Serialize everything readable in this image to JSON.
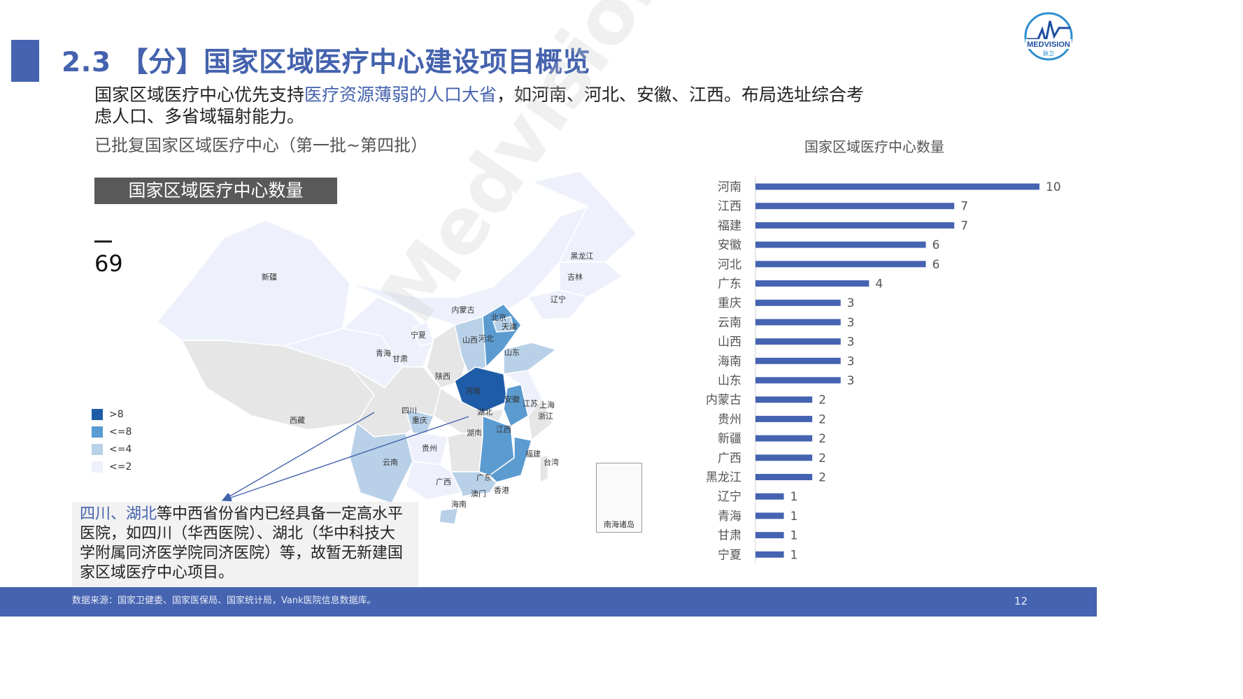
{
  "header": {
    "title": "2.3 【分】国家区域医疗中心建设项目概览",
    "logo_text": "MEDVISION",
    "logo_subtext": "脉卫"
  },
  "intro": {
    "part1": "国家区域医疗中心优先支持",
    "highlight": "医疗资源薄弱的人口大省",
    "part2": "，如河南、河北、安徽、江西。布局选址综合考虑人口、多省域辐射能力。"
  },
  "subheading": "已批复国家区域医疗中心（第一批~第四批）",
  "map": {
    "title": "国家区域医疗中心数量",
    "total": "69",
    "watermark": "Medvision",
    "legend": [
      {
        "label": ">8",
        "color": "#1f5ca8"
      },
      {
        "label": "<=8",
        "color": "#5b9bd0"
      },
      {
        "label": "<=4",
        "color": "#b9d1e8"
      },
      {
        "label": "<=2",
        "color": "#eef1fb"
      }
    ],
    "labels": [
      "新疆",
      "西藏",
      "青海",
      "甘肃",
      "宁夏",
      "内蒙古",
      "黑龙江",
      "吉林",
      "辽宁",
      "北京",
      "天津",
      "河北",
      "山西",
      "山东",
      "陕西",
      "河南",
      "安徽",
      "江苏",
      "上海",
      "浙江",
      "湖北",
      "四川",
      "重庆",
      "贵州",
      "云南",
      "湖南",
      "江西",
      "福建",
      "台湾",
      "广东",
      "广西",
      "澳门",
      "香港",
      "海南"
    ],
    "inset_label": "南海诸岛"
  },
  "note": {
    "highlight": "四川、湖北",
    "text": "等中西省份省内已经具备一定高水平医院，如四川（华西医院）、湖北（华中科技大学附属同济医学院同济医院）等，故暂无新建国家区域医疗中心项目。"
  },
  "chart_data": {
    "type": "bar",
    "orientation": "horizontal",
    "title": "国家区域医疗中心数量",
    "categories": [
      "河南",
      "江西",
      "福建",
      "安徽",
      "河北",
      "广东",
      "重庆",
      "云南",
      "山西",
      "海南",
      "山东",
      "内蒙古",
      "贵州",
      "新疆",
      "广西",
      "黑龙江",
      "辽宁",
      "青海",
      "甘肃",
      "宁夏"
    ],
    "values": [
      10,
      7,
      7,
      6,
      6,
      4,
      3,
      3,
      3,
      3,
      3,
      2,
      2,
      2,
      2,
      2,
      1,
      1,
      1,
      1
    ],
    "xlim": [
      0,
      10
    ],
    "bar_color": "#4563b0",
    "grid": false,
    "legend": "none"
  },
  "footer": {
    "source": "数据来源：国家卫健委、国家医保局、国家统计局，Vank医院信息数据库。",
    "page": "12"
  }
}
